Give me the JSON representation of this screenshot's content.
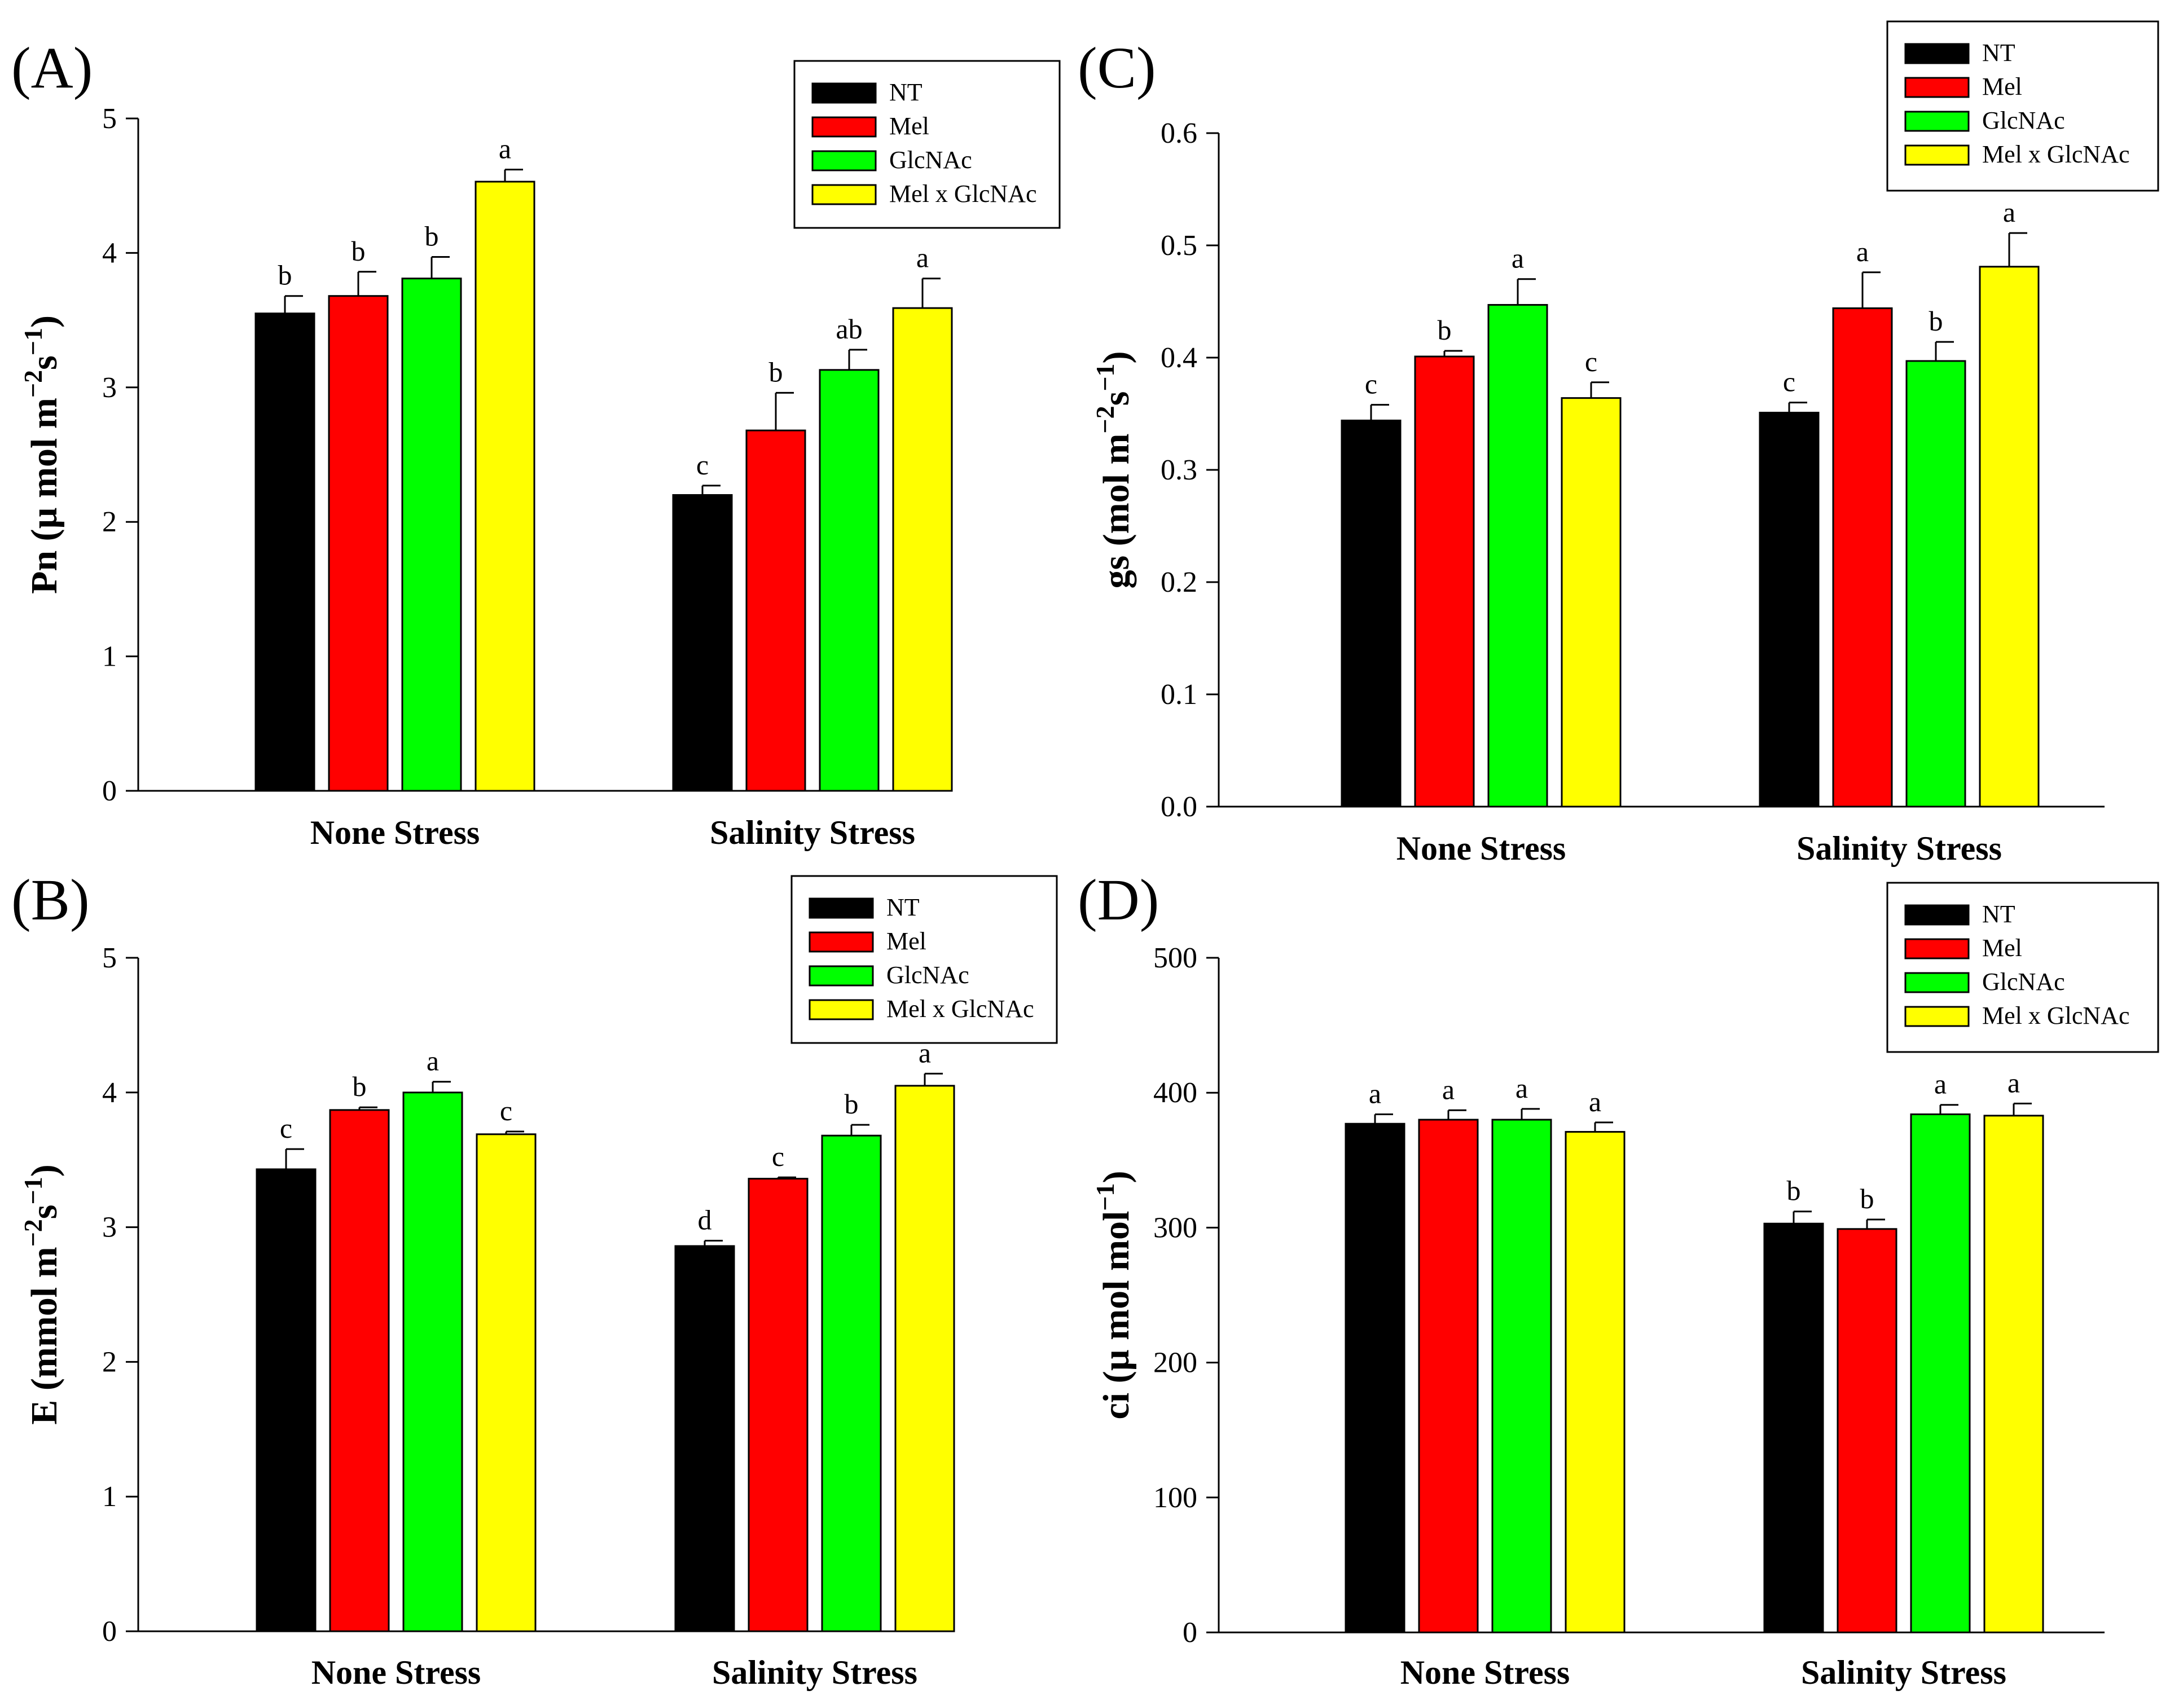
{
  "colors": {
    "NT": "#000000",
    "Mel": "#ff0000",
    "GlcNAc": "#00ff00",
    "Mel x GlcNAc": "#ffff00"
  },
  "chart_data": [
    {
      "id": "A",
      "panel_label": "(A)",
      "type": "bar",
      "categories": [
        "None Stress",
        "Salinity Stress"
      ],
      "ylabel": {
        "base": "Pn (µ mol m",
        "sup1": "−2",
        "mid": "s",
        "sup2": "−1",
        "end": ")"
      },
      "ylim": [
        0,
        5
      ],
      "yticks": [
        "0",
        "1",
        "2",
        "3",
        "4",
        "5"
      ],
      "legend": [
        "NT",
        "Mel",
        "GlcNAc",
        "Mel x GlcNAc"
      ],
      "series": [
        {
          "name": "NT",
          "values": [
            3.55,
            2.2
          ],
          "errors": [
            0.13,
            0.07
          ],
          "letters": [
            "b",
            "c"
          ]
        },
        {
          "name": "Mel",
          "values": [
            3.68,
            2.68
          ],
          "errors": [
            0.18,
            0.28
          ],
          "letters": [
            "b",
            "b"
          ]
        },
        {
          "name": "GlcNAc",
          "values": [
            3.81,
            3.13
          ],
          "errors": [
            0.16,
            0.15
          ],
          "letters": [
            "b",
            "ab"
          ]
        },
        {
          "name": "Mel x GlcNAc",
          "values": [
            4.53,
            3.59
          ],
          "errors": [
            0.09,
            0.22
          ],
          "letters": [
            "a",
            "a"
          ]
        }
      ]
    },
    {
      "id": "C",
      "panel_label": "(C)",
      "type": "bar",
      "categories": [
        "None Stress",
        "Salinity Stress"
      ],
      "ylabel": {
        "base": "gs (mol m",
        "sup1": "−2",
        "mid": "s",
        "sup2": "−1",
        "end": ")"
      },
      "ylim": [
        0,
        0.6
      ],
      "yticks": [
        "0.0",
        "0.1",
        "0.2",
        "0.3",
        "0.4",
        "0.5",
        "0.6"
      ],
      "legend": [
        "NT",
        "Mel",
        "GlcNAc",
        "Mel x GlcNAc"
      ],
      "series": [
        {
          "name": "NT",
          "values": [
            0.344,
            0.351
          ],
          "errors": [
            0.014,
            0.009
          ],
          "letters": [
            "c",
            "c"
          ]
        },
        {
          "name": "Mel",
          "values": [
            0.401,
            0.444
          ],
          "errors": [
            0.005,
            0.032
          ],
          "letters": [
            "b",
            "a"
          ]
        },
        {
          "name": "GlcNAc",
          "values": [
            0.447,
            0.397
          ],
          "errors": [
            0.023,
            0.017
          ],
          "letters": [
            "a",
            "b"
          ]
        },
        {
          "name": "Mel x GlcNAc",
          "values": [
            0.364,
            0.481
          ],
          "errors": [
            0.014,
            0.03
          ],
          "letters": [
            "c",
            "a"
          ]
        }
      ]
    },
    {
      "id": "B",
      "panel_label": "(B)",
      "type": "bar",
      "categories": [
        "None Stress",
        "Salinity Stress"
      ],
      "ylabel": {
        "base": "E (mmol m",
        "sup1": "−2",
        "mid": "s",
        "sup2": "−1",
        "end": ")"
      },
      "ylim": [
        0,
        5
      ],
      "yticks": [
        "0",
        "1",
        "2",
        "3",
        "4",
        "5"
      ],
      "legend": [
        "NT",
        "Mel",
        "GlcNAc",
        "Mel x GlcNAc"
      ],
      "series": [
        {
          "name": "NT",
          "values": [
            3.43,
            2.86
          ],
          "errors": [
            0.15,
            0.04
          ],
          "letters": [
            "c",
            "d"
          ]
        },
        {
          "name": "Mel",
          "values": [
            3.87,
            3.36
          ],
          "errors": [
            0.02,
            0.01
          ],
          "letters": [
            "b",
            "c"
          ]
        },
        {
          "name": "GlcNAc",
          "values": [
            4.0,
            3.68
          ],
          "errors": [
            0.08,
            0.08
          ],
          "letters": [
            "a",
            "b"
          ]
        },
        {
          "name": "Mel x GlcNAc",
          "values": [
            3.69,
            4.05
          ],
          "errors": [
            0.02,
            0.09
          ],
          "letters": [
            "c",
            "a"
          ]
        }
      ]
    },
    {
      "id": "D",
      "panel_label": "(D)",
      "type": "bar",
      "categories": [
        "None Stress",
        "Salinity Stress"
      ],
      "ylabel": {
        "base": "ci (µ mol mol",
        "sup1": "−1",
        "mid": "",
        "sup2": "",
        "end": ")"
      },
      "ylim": [
        0,
        500
      ],
      "yticks": [
        "0",
        "100",
        "200",
        "300",
        "400",
        "500"
      ],
      "legend": [
        "NT",
        "Mel",
        "GlcNAc",
        "Mel x GlcNAc"
      ],
      "series": [
        {
          "name": "NT",
          "values": [
            377,
            303
          ],
          "errors": [
            7,
            9
          ],
          "letters": [
            "a",
            "b"
          ]
        },
        {
          "name": "Mel",
          "values": [
            380,
            299
          ],
          "errors": [
            7,
            7
          ],
          "letters": [
            "a",
            "b"
          ]
        },
        {
          "name": "GlcNAc",
          "values": [
            380,
            384
          ],
          "errors": [
            8,
            7
          ],
          "letters": [
            "a",
            "a"
          ]
        },
        {
          "name": "Mel x GlcNAc",
          "values": [
            371,
            383
          ],
          "errors": [
            7,
            9
          ],
          "letters": [
            "a",
            "a"
          ]
        }
      ]
    }
  ]
}
